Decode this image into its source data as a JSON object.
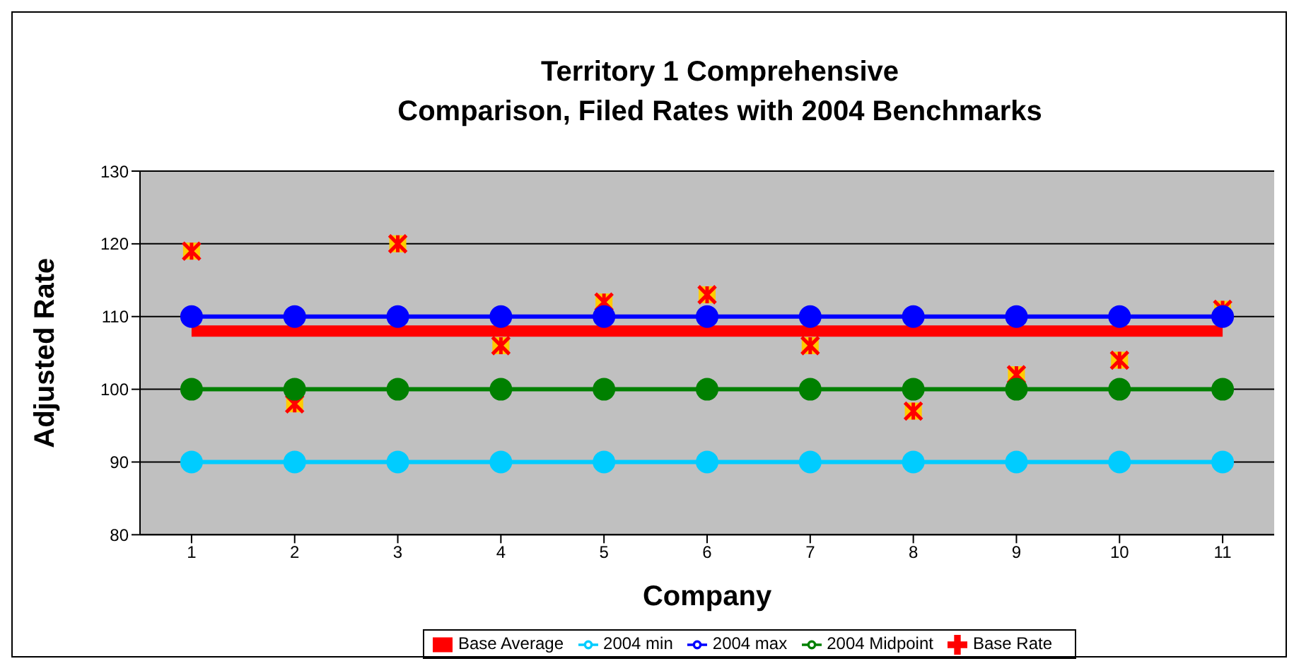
{
  "chart_data": {
    "type": "line",
    "title": "Territory 1 Comprehensive\nComparison, Filed Rates with 2004 Benchmarks",
    "xlabel": "Company",
    "ylabel": "Adjusted Rate",
    "categories": [
      "1",
      "2",
      "3",
      "4",
      "5",
      "6",
      "7",
      "8",
      "9",
      "10",
      "11"
    ],
    "series": [
      {
        "name": "Base Rate",
        "type": "scatter",
        "marker": "cross",
        "color": "#ff0000",
        "values": [
          119,
          98,
          120,
          106,
          112,
          113,
          106,
          97,
          102,
          104,
          111
        ]
      },
      {
        "name": "Base Average",
        "marker": "none",
        "color": "#ff0000",
        "values": [
          108,
          108,
          108,
          108,
          108,
          108,
          108,
          108,
          108,
          108,
          108
        ]
      },
      {
        "name": "2004 min",
        "marker": "circle",
        "color": "#00ccff",
        "values": [
          90,
          90,
          90,
          90,
          90,
          90,
          90,
          90,
          90,
          90,
          90
        ]
      },
      {
        "name": "2004 max",
        "marker": "circle",
        "color": "#0000ff",
        "values": [
          110,
          110,
          110,
          110,
          110,
          110,
          110,
          110,
          110,
          110,
          110
        ]
      },
      {
        "name": "2004 Midpoint",
        "marker": "circle",
        "color": "#008000",
        "values": [
          100,
          100,
          100,
          100,
          100,
          100,
          100,
          100,
          100,
          100,
          100
        ]
      }
    ],
    "ylim": [
      80,
      130
    ],
    "yticks": [
      80,
      90,
      100,
      110,
      120,
      130
    ],
    "grid": "y",
    "legend": "bottom"
  }
}
